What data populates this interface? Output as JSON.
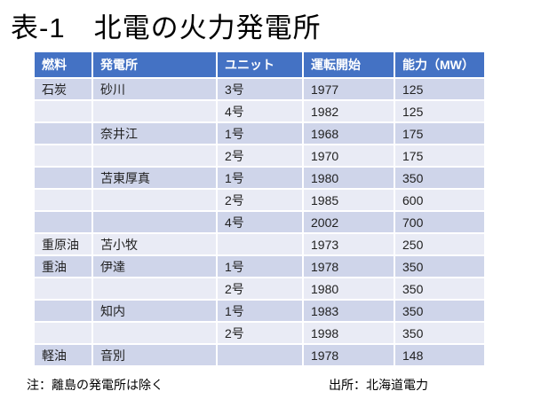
{
  "title": "表-1　北電の火力発電所",
  "chart_data": {
    "type": "table",
    "title": "表-1　北電の火力発電所",
    "columns": [
      "燃料",
      "発電所",
      "ユニット",
      "運転開始",
      "能力（MW）"
    ],
    "rows": [
      [
        "石炭",
        "砂川",
        "3号",
        "1977",
        "125"
      ],
      [
        "",
        "",
        "4号",
        "1982",
        "125"
      ],
      [
        "",
        "奈井江",
        "1号",
        "1968",
        "175"
      ],
      [
        "",
        "",
        "2号",
        "1970",
        "175"
      ],
      [
        "",
        "苫東厚真",
        "1号",
        "1980",
        "350"
      ],
      [
        "",
        "",
        "2号",
        "1985",
        "600"
      ],
      [
        "",
        "",
        "4号",
        "2002",
        "700"
      ],
      [
        "重原油",
        "苫小牧",
        "",
        "1973",
        "250"
      ],
      [
        "重油",
        "伊達",
        "1号",
        "1978",
        "350"
      ],
      [
        "",
        "",
        "2号",
        "1980",
        "350"
      ],
      [
        "",
        "知内",
        "1号",
        "1983",
        "350"
      ],
      [
        "",
        "",
        "2号",
        "1998",
        "350"
      ],
      [
        "軽油",
        "音別",
        "",
        "1978",
        "148"
      ]
    ],
    "banding": "alternating rows starting dark",
    "layout": {
      "header_position": "top",
      "grid": "white 2px lines"
    }
  },
  "footer": {
    "note": "注：離島の発電所は除く",
    "source": "出所：北海道電力"
  },
  "colors": {
    "header_bg": "#4472C4",
    "header_text": "#FFFFFF",
    "row_band_dark": "#CFD5EA",
    "row_band_light": "#E9EBF5",
    "body_text": "#212121",
    "title_text": "#000000",
    "page_bg": "#FFFFFF"
  }
}
